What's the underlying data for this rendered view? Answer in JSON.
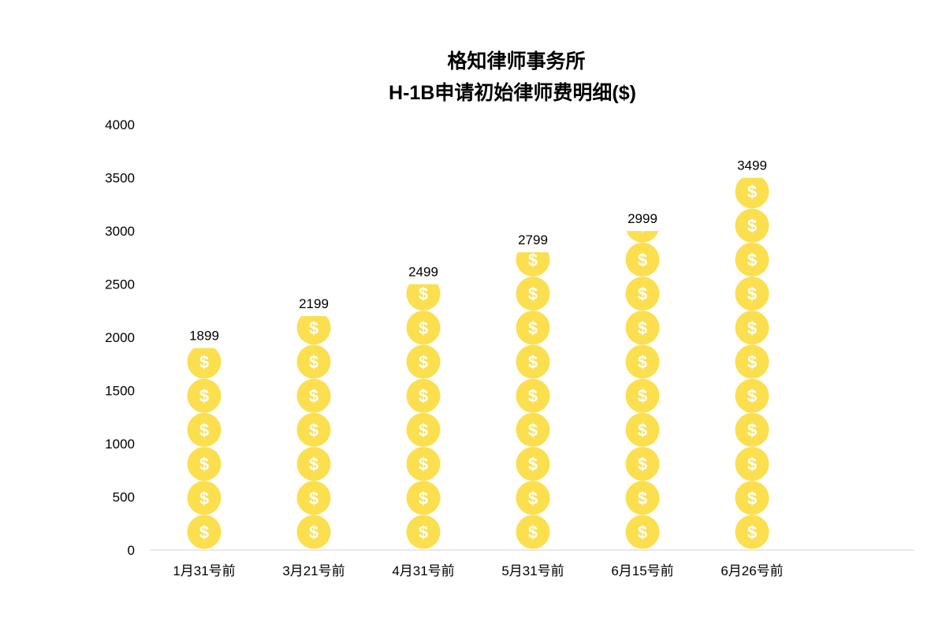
{
  "chart_data": {
    "type": "bar",
    "title": [
      "格知律师事务所",
      "H-1B申请初始律师费明细($)"
    ],
    "xlabel": "",
    "ylabel": "",
    "categories": [
      "1月31号前",
      "3月21号前",
      "4月31号前",
      "5月31号前",
      "6月15号前",
      "6月26号前"
    ],
    "values": [
      1899,
      2199,
      2499,
      2799,
      2999,
      3499
    ],
    "data_labels": [
      "1899",
      "2199",
      "2499",
      "2799",
      "2999",
      "3499"
    ],
    "ylim": [
      0,
      4000
    ],
    "yticks": [
      0,
      500,
      1000,
      1500,
      2000,
      2500,
      3000,
      3500,
      4000
    ],
    "ytick_labels": [
      "0",
      "500",
      "1000",
      "1500",
      "2000",
      "2500",
      "3000",
      "3500",
      "4000"
    ],
    "coin_value": 320,
    "coin_symbol": "$",
    "coin_color": "#FBDF4E",
    "symbol_color": "#FFFFFF",
    "axis_color": "#D9D9D9",
    "grid": false,
    "legend": "none"
  }
}
